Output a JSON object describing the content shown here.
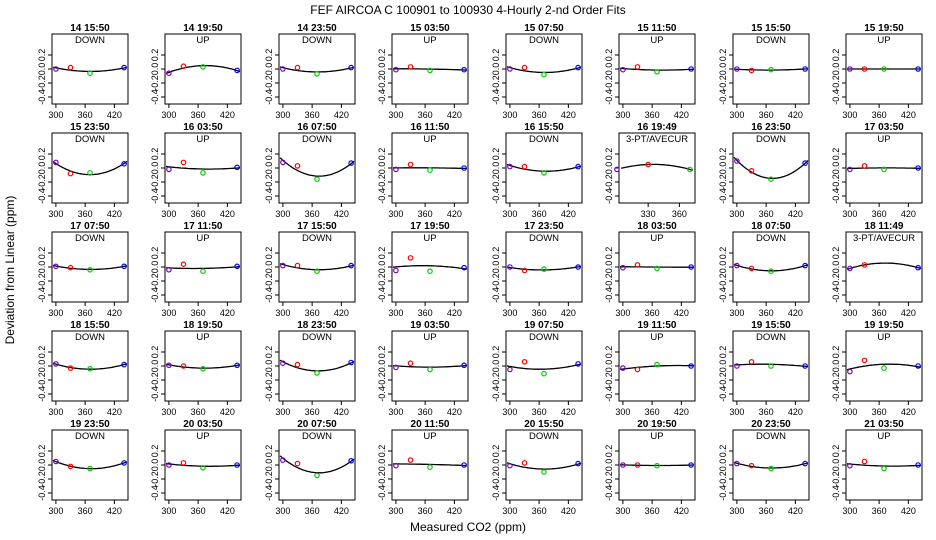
{
  "chart_data": {
    "type": "scatter",
    "title": "FEF   AIRCOA C   100901 to 100930   4-Hourly 2-nd Order Fits",
    "xlabel": "Measured CO2 (ppm)",
    "ylabel": "Deviation from Linear (ppm)",
    "grid": false,
    "legend": "none",
    "layout_rows": 5,
    "layout_cols": 8,
    "ylim": [
      -0.5,
      0.5
    ],
    "yticks": [
      "0.2",
      "0.0",
      "-0.2",
      "-0.4"
    ],
    "ytick_values": [
      0.2,
      0.0,
      -0.2,
      -0.4
    ],
    "xticks_default": [
      "300",
      "360",
      "420"
    ],
    "xtick_values_default": [
      300,
      360,
      420
    ],
    "colors": {
      "standard1": "#7700cc",
      "standard2": "#ff0000",
      "standard3": "#00cc00",
      "standard4": "#0000ff",
      "fit": "#000000"
    },
    "panels": [
      {
        "title": "14 15:50",
        "label": "DOWN",
        "x": [
          300,
          330,
          370,
          440
        ],
        "y": [
          0.0,
          0.02,
          -0.06,
          0.02
        ]
      },
      {
        "title": "14 19:50",
        "label": "UP",
        "x": [
          300,
          330,
          370,
          440
        ],
        "y": [
          -0.06,
          0.04,
          0.03,
          -0.02
        ]
      },
      {
        "title": "14 23:50",
        "label": "DOWN",
        "x": [
          300,
          330,
          370,
          440
        ],
        "y": [
          0.0,
          0.02,
          -0.07,
          0.02
        ]
      },
      {
        "title": "15 03:50",
        "label": "UP",
        "x": [
          300,
          330,
          370,
          440
        ],
        "y": [
          -0.01,
          0.03,
          -0.02,
          -0.01
        ]
      },
      {
        "title": "15 07:50",
        "label": "DOWN",
        "x": [
          300,
          330,
          370,
          440
        ],
        "y": [
          0.0,
          0.02,
          -0.08,
          0.02
        ]
      },
      {
        "title": "15 11:50",
        "label": "UP",
        "x": [
          300,
          330,
          370,
          440
        ],
        "y": [
          -0.01,
          0.03,
          -0.04,
          0.0
        ]
      },
      {
        "title": "15 15:50",
        "label": "DOWN",
        "x": [
          300,
          330,
          370,
          440
        ],
        "y": [
          0.0,
          -0.02,
          -0.01,
          0.0
        ]
      },
      {
        "title": "15 19:50",
        "label": "UP",
        "x": [
          300,
          330,
          370,
          440
        ],
        "y": [
          0.0,
          0.0,
          0.0,
          0.0
        ]
      },
      {
        "title": "15 23:50",
        "label": "DOWN",
        "x": [
          300,
          330,
          370,
          440
        ],
        "y": [
          0.08,
          -0.08,
          -0.07,
          0.06
        ]
      },
      {
        "title": "16 03:50",
        "label": "UP",
        "x": [
          300,
          330,
          370,
          440
        ],
        "y": [
          -0.02,
          0.08,
          -0.07,
          0.01
        ]
      },
      {
        "title": "16 07:50",
        "label": "DOWN",
        "x": [
          300,
          330,
          370,
          440
        ],
        "y": [
          0.08,
          0.03,
          -0.16,
          0.07
        ]
      },
      {
        "title": "16 11:50",
        "label": "UP",
        "x": [
          300,
          330,
          370,
          440
        ],
        "y": [
          -0.02,
          0.05,
          -0.03,
          0.0
        ]
      },
      {
        "title": "16 15:50",
        "label": "DOWN",
        "x": [
          300,
          330,
          370,
          440
        ],
        "y": [
          0.02,
          0.02,
          -0.07,
          0.02
        ]
      },
      {
        "title": "16 19:49",
        "label": "3-PT/AVECUR",
        "x": [
          300,
          330,
          370
        ],
        "y": [
          -0.02,
          0.05,
          -0.02
        ],
        "xticks": [
          "330",
          "360"
        ],
        "xtick_values": [
          330,
          360
        ],
        "xlim": [
          302,
          375
        ]
      },
      {
        "title": "16 23:50",
        "label": "DOWN",
        "x": [
          300,
          330,
          370,
          440
        ],
        "y": [
          0.1,
          -0.04,
          -0.16,
          0.07
        ]
      },
      {
        "title": "17 03:50",
        "label": "UP",
        "x": [
          300,
          330,
          370,
          440
        ],
        "y": [
          -0.02,
          0.03,
          -0.02,
          0.0
        ]
      },
      {
        "title": "17 07:50",
        "label": "DOWN",
        "x": [
          300,
          330,
          370,
          440
        ],
        "y": [
          0.01,
          -0.01,
          -0.04,
          0.01
        ]
      },
      {
        "title": "17 11:50",
        "label": "UP",
        "x": [
          300,
          330,
          370,
          440
        ],
        "y": [
          -0.04,
          0.04,
          -0.06,
          0.01
        ]
      },
      {
        "title": "17 15:50",
        "label": "DOWN",
        "x": [
          300,
          330,
          370,
          440
        ],
        "y": [
          0.02,
          0.02,
          -0.06,
          0.02
        ]
      },
      {
        "title": "17 19:50",
        "label": "UP",
        "x": [
          300,
          330,
          370,
          440
        ],
        "y": [
          -0.05,
          0.13,
          -0.06,
          -0.01
        ]
      },
      {
        "title": "17 23:50",
        "label": "DOWN",
        "x": [
          300,
          330,
          370,
          440
        ],
        "y": [
          0.0,
          -0.05,
          -0.03,
          0.0
        ]
      },
      {
        "title": "18 03:50",
        "label": "UP",
        "x": [
          300,
          330,
          370,
          440
        ],
        "y": [
          -0.01,
          0.03,
          -0.02,
          0.0
        ]
      },
      {
        "title": "18 07:50",
        "label": "DOWN",
        "x": [
          300,
          330,
          370,
          440
        ],
        "y": [
          0.02,
          -0.02,
          -0.06,
          0.02
        ]
      },
      {
        "title": "18 11:49",
        "label": "3-PT/AVECUR",
        "x": [
          300,
          330,
          440
        ],
        "y": [
          -0.02,
          0.03,
          -0.01
        ]
      },
      {
        "title": "18 15:50",
        "label": "DOWN",
        "x": [
          300,
          330,
          370,
          440
        ],
        "y": [
          0.03,
          -0.03,
          -0.04,
          0.02
        ]
      },
      {
        "title": "18 19:50",
        "label": "UP",
        "x": [
          300,
          330,
          370,
          440
        ],
        "y": [
          0.01,
          0.0,
          -0.04,
          0.01
        ]
      },
      {
        "title": "18 23:50",
        "label": "DOWN",
        "x": [
          300,
          330,
          370,
          440
        ],
        "y": [
          0.04,
          0.02,
          -0.1,
          0.05
        ]
      },
      {
        "title": "19 03:50",
        "label": "UP",
        "x": [
          300,
          330,
          370,
          440
        ],
        "y": [
          -0.02,
          0.04,
          -0.05,
          0.01
        ]
      },
      {
        "title": "19 07:50",
        "label": "DOWN",
        "x": [
          300,
          330,
          370,
          440
        ],
        "y": [
          -0.05,
          0.06,
          -0.11,
          0.03
        ]
      },
      {
        "title": "19 11:50",
        "label": "UP",
        "x": [
          300,
          330,
          370,
          440
        ],
        "y": [
          -0.03,
          -0.05,
          0.02,
          0.0
        ]
      },
      {
        "title": "19 15:50",
        "label": "DOWN",
        "x": [
          300,
          330,
          370,
          440
        ],
        "y": [
          0.0,
          0.06,
          0.0,
          0.0
        ]
      },
      {
        "title": "19 19:50",
        "label": "UP",
        "x": [
          300,
          330,
          370,
          440
        ],
        "y": [
          -0.08,
          0.08,
          -0.03,
          0.0
        ]
      },
      {
        "title": "19 23:50",
        "label": "DOWN",
        "x": [
          300,
          330,
          370,
          440
        ],
        "y": [
          0.05,
          -0.02,
          -0.05,
          0.03
        ]
      },
      {
        "title": "20 03:50",
        "label": "UP",
        "x": [
          300,
          330,
          370,
          440
        ],
        "y": [
          0.0,
          0.03,
          -0.04,
          0.0
        ]
      },
      {
        "title": "20 07:50",
        "label": "DOWN",
        "x": [
          300,
          330,
          370,
          440
        ],
        "y": [
          0.07,
          0.02,
          -0.15,
          0.06
        ]
      },
      {
        "title": "20 11:50",
        "label": "UP",
        "x": [
          300,
          330,
          370,
          440
        ],
        "y": [
          -0.01,
          0.07,
          -0.03,
          0.0
        ]
      },
      {
        "title": "20 15:50",
        "label": "DOWN",
        "x": [
          300,
          330,
          370,
          440
        ],
        "y": [
          -0.01,
          0.03,
          -0.1,
          0.02
        ]
      },
      {
        "title": "20 19:50",
        "label": "UP",
        "x": [
          300,
          330,
          370,
          440
        ],
        "y": [
          0.0,
          0.0,
          -0.01,
          0.0
        ]
      },
      {
        "title": "20 23:50",
        "label": "DOWN",
        "x": [
          300,
          330,
          370,
          440
        ],
        "y": [
          0.02,
          -0.01,
          -0.05,
          0.02
        ]
      },
      {
        "title": "21 03:50",
        "label": "UP",
        "x": [
          300,
          330,
          370,
          440
        ],
        "y": [
          -0.01,
          0.05,
          -0.05,
          0.0
        ]
      }
    ]
  }
}
